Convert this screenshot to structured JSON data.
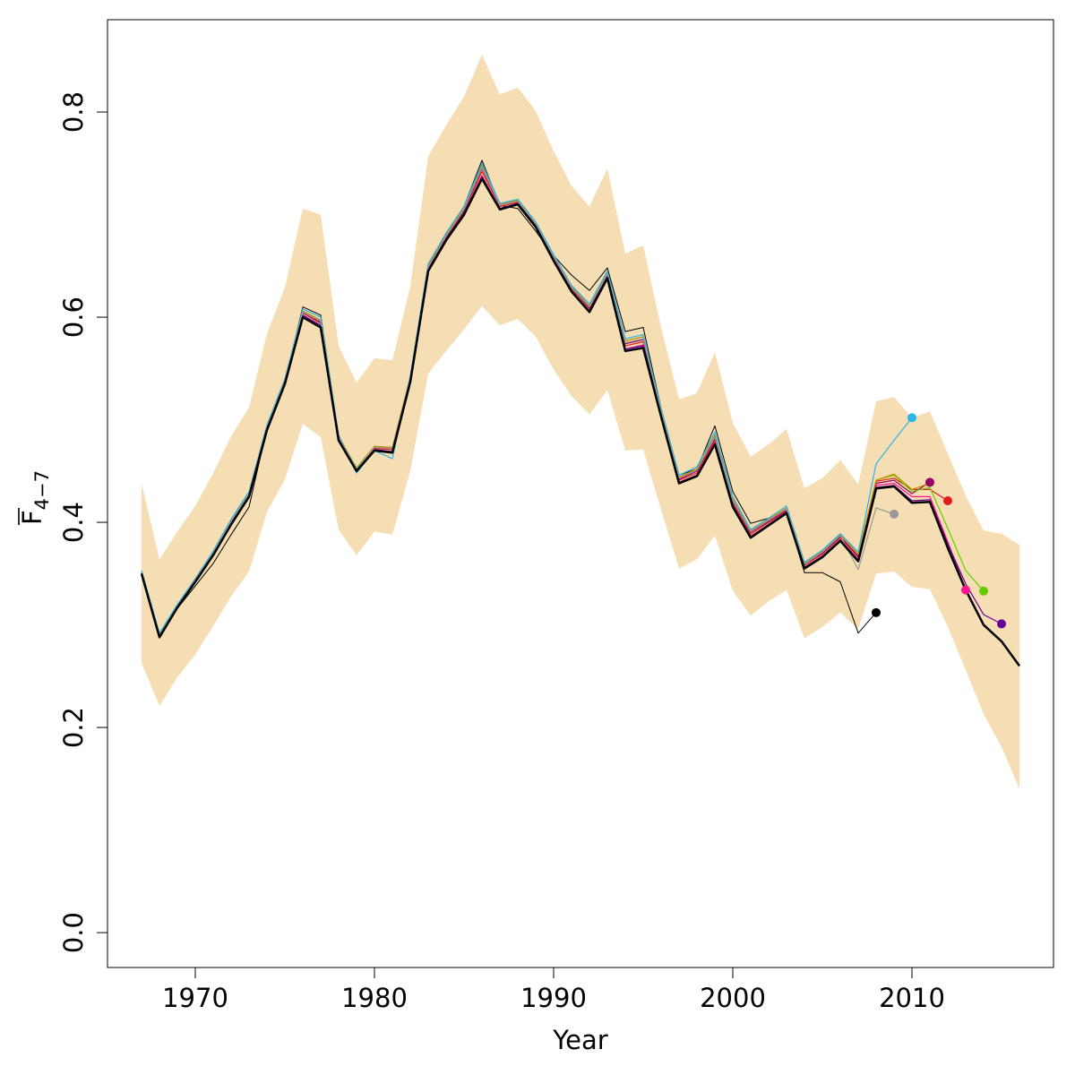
{
  "chart_data": {
    "type": "line",
    "xlabel": "Year",
    "ylabel_main": "F",
    "ylabel_sub": "4−7",
    "xlim": [
      1965.1,
      2017.9
    ],
    "ylim": [
      -0.034,
      0.89
    ],
    "xticks": [
      1970,
      1980,
      1990,
      2000,
      2010
    ],
    "xtick_labels": [
      "1970",
      "1980",
      "1990",
      "2000",
      "2010"
    ],
    "yticks": [
      0.0,
      0.2,
      0.4,
      0.6,
      0.8
    ],
    "ytick_labels": [
      "0.0",
      "0.2",
      "0.4",
      "0.6",
      "0.8"
    ],
    "grid": false,
    "band_color": "#f5deb3",
    "confidence_band": {
      "x": [
        1967,
        1968,
        1969,
        1970,
        1971,
        1972,
        1973,
        1974,
        1975,
        1976,
        1977,
        1978,
        1979,
        1980,
        1981,
        1982,
        1983,
        1984,
        1985,
        1986,
        1987,
        1988,
        1989,
        1990,
        1991,
        1992,
        1993,
        1994,
        1995,
        1996,
        1997,
        1998,
        1999,
        2000,
        2001,
        2002,
        2003,
        2004,
        2005,
        2006,
        2007,
        2008,
        2009,
        2010,
        2011,
        2012,
        2013,
        2014,
        2015,
        2016
      ],
      "upper": [
        0.438,
        0.364,
        0.391,
        0.416,
        0.448,
        0.484,
        0.512,
        0.584,
        0.629,
        0.706,
        0.7,
        0.572,
        0.536,
        0.56,
        0.558,
        0.63,
        0.757,
        0.787,
        0.815,
        0.856,
        0.817,
        0.824,
        0.801,
        0.762,
        0.728,
        0.708,
        0.745,
        0.662,
        0.67,
        0.59,
        0.52,
        0.526,
        0.566,
        0.497,
        0.464,
        0.476,
        0.491,
        0.433,
        0.443,
        0.461,
        0.437,
        0.518,
        0.522,
        0.502,
        0.508,
        0.467,
        0.426,
        0.392,
        0.389,
        0.378
      ],
      "lower": [
        0.263,
        0.221,
        0.249,
        0.271,
        0.299,
        0.328,
        0.352,
        0.41,
        0.442,
        0.496,
        0.483,
        0.393,
        0.368,
        0.391,
        0.388,
        0.45,
        0.545,
        0.567,
        0.588,
        0.611,
        0.592,
        0.598,
        0.581,
        0.549,
        0.523,
        0.505,
        0.529,
        0.47,
        0.471,
        0.412,
        0.355,
        0.364,
        0.387,
        0.333,
        0.309,
        0.323,
        0.334,
        0.287,
        0.298,
        0.312,
        0.296,
        0.35,
        0.352,
        0.337,
        0.335,
        0.298,
        0.256,
        0.213,
        0.181,
        0.14
      ]
    },
    "series": [
      {
        "color": "#000000",
        "width": 2.5,
        "x": [
          1967,
          1968,
          1969,
          1970,
          1971,
          1972,
          1973,
          1974,
          1975,
          1976,
          1977,
          1978,
          1979,
          1980,
          1981,
          1982,
          1983,
          1984,
          1985,
          1986,
          1987,
          1988,
          1989,
          1990,
          1991,
          1992,
          1993,
          1994,
          1995,
          1996,
          1997,
          1998,
          1999,
          2000,
          2001,
          2002,
          2003,
          2004,
          2005,
          2006,
          2007,
          2008,
          2009,
          2010,
          2011,
          2012,
          2013,
          2014,
          2015,
          2016
        ],
        "y": [
          0.35,
          0.288,
          0.317,
          0.342,
          0.368,
          0.398,
          0.425,
          0.49,
          0.535,
          0.6,
          0.59,
          0.48,
          0.45,
          0.47,
          0.468,
          0.537,
          0.645,
          0.675,
          0.7,
          0.735,
          0.705,
          0.71,
          0.688,
          0.655,
          0.625,
          0.605,
          0.638,
          0.567,
          0.57,
          0.503,
          0.438,
          0.445,
          0.476,
          0.415,
          0.385,
          0.397,
          0.409,
          0.355,
          0.366,
          0.382,
          0.362,
          0.433,
          0.435,
          0.419,
          0.42,
          0.375,
          0.334,
          0.3,
          0.284,
          0.26
        ]
      },
      {
        "color": "#e31a1c",
        "width": 1.2,
        "x": [
          1967,
          1968,
          1969,
          1970,
          1971,
          1972,
          1973,
          1974,
          1975,
          1976,
          1977,
          1978,
          1979,
          1980,
          1981,
          1982,
          1983,
          1984,
          1985,
          1986,
          1987,
          1988,
          1989,
          1990,
          1991,
          1992,
          1993,
          1994,
          1995,
          1996,
          1997,
          1998,
          1999,
          2000,
          2001,
          2002,
          2003,
          2004,
          2005,
          2006,
          2007,
          2008,
          2009,
          2010,
          2011,
          2012
        ],
        "y": [
          0.351,
          0.29,
          0.318,
          0.344,
          0.37,
          0.4,
          0.427,
          0.492,
          0.537,
          0.604,
          0.594,
          0.482,
          0.451,
          0.472,
          0.471,
          0.54,
          0.648,
          0.677,
          0.703,
          0.742,
          0.708,
          0.712,
          0.69,
          0.658,
          0.628,
          0.608,
          0.64,
          0.572,
          0.576,
          0.506,
          0.441,
          0.448,
          0.48,
          0.418,
          0.388,
          0.4,
          0.411,
          0.358,
          0.369,
          0.385,
          0.366,
          0.44,
          0.443,
          0.432,
          0.432,
          0.421
        ]
      },
      {
        "color": "#ff1493",
        "width": 1.2,
        "x": [
          1967,
          1968,
          1969,
          1970,
          1971,
          1972,
          1973,
          1974,
          1975,
          1976,
          1977,
          1978,
          1979,
          1980,
          1981,
          1982,
          1983,
          1984,
          1985,
          1986,
          1987,
          1988,
          1989,
          1990,
          1991,
          1992,
          1993,
          1994,
          1995,
          1996,
          1997,
          1998,
          1999,
          2000,
          2001,
          2002,
          2003,
          2004,
          2005,
          2006,
          2007,
          2008,
          2009,
          2010,
          2011,
          2012,
          2013
        ],
        "y": [
          0.35,
          0.289,
          0.317,
          0.343,
          0.369,
          0.399,
          0.426,
          0.491,
          0.536,
          0.602,
          0.592,
          0.481,
          0.451,
          0.471,
          0.469,
          0.539,
          0.646,
          0.676,
          0.701,
          0.738,
          0.706,
          0.711,
          0.689,
          0.656,
          0.626,
          0.606,
          0.639,
          0.569,
          0.573,
          0.504,
          0.439,
          0.446,
          0.478,
          0.416,
          0.386,
          0.398,
          0.41,
          0.356,
          0.367,
          0.383,
          0.364,
          0.436,
          0.438,
          0.425,
          0.425,
          0.381,
          0.334
        ]
      },
      {
        "color": "#990066",
        "width": 1.2,
        "x": [
          1967,
          1968,
          1969,
          1970,
          1971,
          1972,
          1973,
          1974,
          1975,
          1976,
          1977,
          1978,
          1979,
          1980,
          1981,
          1982,
          1983,
          1984,
          1985,
          1986,
          1987,
          1988,
          1989,
          1990,
          1991,
          1992,
          1993,
          1994,
          1995,
          1996,
          1997,
          1998,
          1999,
          2000,
          2001,
          2002,
          2003,
          2004,
          2005,
          2006,
          2007,
          2008,
          2009,
          2010,
          2011
        ],
        "y": [
          0.351,
          0.29,
          0.318,
          0.344,
          0.37,
          0.401,
          0.428,
          0.493,
          0.538,
          0.605,
          0.595,
          0.483,
          0.452,
          0.473,
          0.472,
          0.541,
          0.649,
          0.678,
          0.704,
          0.745,
          0.709,
          0.713,
          0.691,
          0.659,
          0.629,
          0.609,
          0.641,
          0.574,
          0.578,
          0.507,
          0.442,
          0.45,
          0.482,
          0.42,
          0.39,
          0.401,
          0.412,
          0.359,
          0.37,
          0.386,
          0.367,
          0.438,
          0.441,
          0.428,
          0.439
        ]
      },
      {
        "color": "#66cc00",
        "width": 1.2,
        "x": [
          1967,
          1968,
          1969,
          1970,
          1971,
          1972,
          1973,
          1974,
          1975,
          1976,
          1977,
          1978,
          1979,
          1980,
          1981,
          1982,
          1983,
          1984,
          1985,
          1986,
          1987,
          1988,
          1989,
          1990,
          1991,
          1992,
          1993,
          1994,
          1995,
          1996,
          1997,
          1998,
          1999,
          2000,
          2001,
          2002,
          2003,
          2004,
          2005,
          2006,
          2007,
          2008,
          2009,
          2010,
          2011,
          2012,
          2013,
          2014
        ],
        "y": [
          0.352,
          0.291,
          0.319,
          0.345,
          0.371,
          0.402,
          0.429,
          0.494,
          0.539,
          0.606,
          0.597,
          0.484,
          0.453,
          0.474,
          0.473,
          0.542,
          0.65,
          0.68,
          0.706,
          0.748,
          0.71,
          0.714,
          0.692,
          0.66,
          0.63,
          0.611,
          0.643,
          0.577,
          0.581,
          0.509,
          0.444,
          0.452,
          0.485,
          0.423,
          0.392,
          0.403,
          0.414,
          0.36,
          0.372,
          0.388,
          0.369,
          0.441,
          0.446,
          0.43,
          0.434,
          0.394,
          0.353,
          0.333
        ]
      },
      {
        "color": "#660099",
        "width": 1.2,
        "x": [
          1967,
          1968,
          1969,
          1970,
          1971,
          1972,
          1973,
          1974,
          1975,
          1976,
          1977,
          1978,
          1979,
          1980,
          1981,
          1982,
          1983,
          1984,
          1985,
          1986,
          1987,
          1988,
          1989,
          1990,
          1991,
          1992,
          1993,
          1994,
          1995,
          1996,
          1997,
          1998,
          1999,
          2000,
          2001,
          2002,
          2003,
          2004,
          2005,
          2006,
          2007,
          2008,
          2009,
          2010,
          2011,
          2012,
          2013,
          2014,
          2015
        ],
        "y": [
          0.35,
          0.289,
          0.317,
          0.343,
          0.369,
          0.399,
          0.426,
          0.491,
          0.536,
          0.602,
          0.592,
          0.481,
          0.45,
          0.471,
          0.469,
          0.538,
          0.646,
          0.676,
          0.701,
          0.737,
          0.706,
          0.711,
          0.689,
          0.656,
          0.626,
          0.606,
          0.639,
          0.569,
          0.572,
          0.504,
          0.439,
          0.446,
          0.477,
          0.416,
          0.386,
          0.398,
          0.41,
          0.356,
          0.367,
          0.383,
          0.363,
          0.434,
          0.436,
          0.421,
          0.422,
          0.379,
          0.34,
          0.31,
          0.301
        ]
      },
      {
        "color": "#cc8800",
        "width": 1.2,
        "x": [
          1967,
          1968,
          1969,
          1970,
          1971,
          1972,
          1973,
          1974,
          1975,
          1976,
          1977,
          1978,
          1979,
          1980,
          1981,
          1982,
          1983,
          1984,
          1985,
          1986,
          1987,
          1988,
          1989,
          1990,
          1991,
          1992,
          1993,
          1994,
          1995,
          1996,
          1997,
          1998,
          1999,
          2000,
          2001,
          2002,
          2003,
          2004,
          2005,
          2006,
          2007,
          2008,
          2009,
          2010,
          2011
        ],
        "y": [
          0.352,
          0.291,
          0.319,
          0.345,
          0.371,
          0.402,
          0.429,
          0.494,
          0.539,
          0.606,
          0.597,
          0.484,
          0.452,
          0.474,
          0.473,
          0.542,
          0.65,
          0.68,
          0.706,
          0.748,
          0.71,
          0.714,
          0.692,
          0.66,
          0.63,
          0.611,
          0.643,
          0.577,
          0.581,
          0.509,
          0.444,
          0.452,
          0.485,
          0.423,
          0.392,
          0.403,
          0.414,
          0.36,
          0.372,
          0.388,
          0.369,
          0.441,
          0.447,
          0.432,
          0.438
        ]
      },
      {
        "color": "#29b6e8",
        "width": 1.2,
        "x": [
          1967,
          1968,
          1969,
          1970,
          1971,
          1972,
          1973,
          1974,
          1975,
          1976,
          1977,
          1978,
          1979,
          1980,
          1981,
          1982,
          1983,
          1984,
          1985,
          1986,
          1987,
          1988,
          1989,
          1990,
          1991,
          1992,
          1993,
          1994,
          1995,
          1996,
          1997,
          1998,
          1999,
          2000,
          2001,
          2002,
          2003,
          2004,
          2005,
          2006,
          2007,
          2008,
          2009,
          2010
        ],
        "y": [
          0.353,
          0.292,
          0.32,
          0.345,
          0.372,
          0.403,
          0.43,
          0.495,
          0.54,
          0.608,
          0.6,
          0.485,
          0.448,
          0.47,
          0.462,
          0.543,
          0.652,
          0.682,
          0.708,
          0.75,
          0.711,
          0.715,
          0.693,
          0.661,
          0.631,
          0.613,
          0.645,
          0.579,
          0.583,
          0.511,
          0.446,
          0.454,
          0.488,
          0.425,
          0.393,
          0.404,
          0.416,
          0.361,
          0.373,
          0.389,
          0.371,
          0.457,
          0.48,
          0.502
        ]
      },
      {
        "color": "#999999",
        "width": 1.2,
        "x": [
          1967,
          1968,
          1969,
          1970,
          1971,
          1972,
          1973,
          1974,
          1975,
          1976,
          1977,
          1978,
          1979,
          1980,
          1981,
          1982,
          1983,
          1984,
          1985,
          1986,
          1987,
          1988,
          1989,
          1990,
          1991,
          1992,
          1993,
          1994,
          1995,
          1996,
          1997,
          1998,
          1999,
          2000,
          2001,
          2002,
          2003,
          2004,
          2005,
          2006,
          2007,
          2008,
          2009
        ],
        "y": [
          0.351,
          0.29,
          0.318,
          0.344,
          0.37,
          0.401,
          0.428,
          0.493,
          0.538,
          0.605,
          0.596,
          0.483,
          0.452,
          0.473,
          0.472,
          0.541,
          0.649,
          0.679,
          0.705,
          0.746,
          0.709,
          0.713,
          0.691,
          0.659,
          0.629,
          0.61,
          0.642,
          0.575,
          0.579,
          0.508,
          0.443,
          0.451,
          0.483,
          0.421,
          0.391,
          0.402,
          0.413,
          0.359,
          0.371,
          0.387,
          0.354,
          0.414,
          0.408
        ]
      },
      {
        "color": "#000000",
        "width": 1.0,
        "x": [
          1967,
          1968,
          1969,
          1970,
          1971,
          1972,
          1973,
          1974,
          1975,
          1976,
          1977,
          1978,
          1979,
          1980,
          1981,
          1982,
          1983,
          1984,
          1985,
          1986,
          1987,
          1988,
          1989,
          1990,
          1991,
          1992,
          1993,
          1994,
          1995,
          1996,
          1997,
          1998,
          1999,
          2000,
          2001,
          2002,
          2003,
          2004,
          2005,
          2006,
          2007,
          2008
        ],
        "y": [
          0.352,
          0.291,
          0.316,
          0.338,
          0.36,
          0.388,
          0.415,
          0.492,
          0.537,
          0.61,
          0.602,
          0.484,
          0.453,
          0.474,
          0.473,
          0.541,
          0.651,
          0.682,
          0.708,
          0.753,
          0.709,
          0.706,
          0.684,
          0.66,
          0.641,
          0.626,
          0.648,
          0.586,
          0.59,
          0.511,
          0.446,
          0.452,
          0.494,
          0.43,
          0.399,
          0.404,
          0.41,
          0.351,
          0.351,
          0.342,
          0.292,
          0.312
        ]
      }
    ],
    "endpoints": [
      {
        "x": 2008,
        "y": 0.312,
        "color": "#000000"
      },
      {
        "x": 2009,
        "y": 0.408,
        "color": "#999999"
      },
      {
        "x": 2010,
        "y": 0.502,
        "color": "#29b6e8"
      },
      {
        "x": 2011,
        "y": 0.439,
        "color": "#990066"
      },
      {
        "x": 2012,
        "y": 0.421,
        "color": "#e31a1c"
      },
      {
        "x": 2013,
        "y": 0.334,
        "color": "#ff1493"
      },
      {
        "x": 2014,
        "y": 0.333,
        "color": "#66cc00"
      },
      {
        "x": 2015,
        "y": 0.301,
        "color": "#660099"
      }
    ]
  }
}
